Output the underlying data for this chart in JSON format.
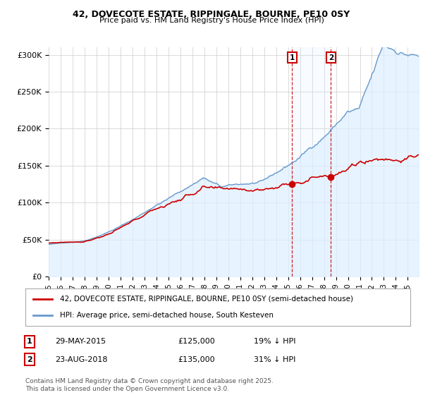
{
  "title": "42, DOVECOTE ESTATE, RIPPINGALE, BOURNE, PE10 0SY",
  "subtitle": "Price paid vs. HM Land Registry's House Price Index (HPI)",
  "background_color": "#ffffff",
  "plot_bg_color": "#ffffff",
  "grid_color": "#cccccc",
  "hpi_color": "#6699cc",
  "hpi_fill_color": "#ddeeff",
  "price_color": "#cc0000",
  "sale1_date_idx": 244,
  "sale1_price": 125000,
  "sale1_label": "1",
  "sale1_date_str": "29-MAY-2015",
  "sale1_pct": "19%",
  "sale2_date_idx": 283,
  "sale2_price": 135000,
  "sale2_label": "2",
  "sale2_date_str": "23-AUG-2018",
  "sale2_pct": "31%",
  "legend_line1": "42, DOVECOTE ESTATE, RIPPINGALE, BOURNE, PE10 0SY (semi-detached house)",
  "legend_line2": "HPI: Average price, semi-detached house, South Kesteven",
  "footer": "Contains HM Land Registry data © Crown copyright and database right 2025.\nThis data is licensed under the Open Government Licence v3.0.",
  "ylim_max": 310000,
  "marker_box_color": "#cc0000",
  "start_year": 1995,
  "n_months": 372
}
